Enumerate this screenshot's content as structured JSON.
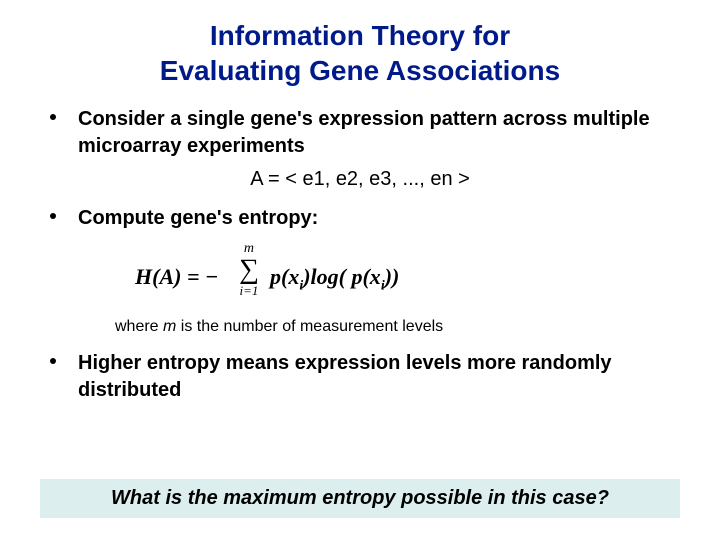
{
  "title": {
    "line1": "Information Theory for",
    "line2": "Evaluating Gene Associations",
    "color": "#001a8a",
    "fontsize": 28
  },
  "bullets": [
    {
      "text": "Consider a single gene's expression pattern across multiple microarray experiments"
    },
    {
      "text": "Compute gene's entropy:"
    },
    {
      "text": "Higher entropy means expression levels more randomly distributed"
    }
  ],
  "vector_formula": "A = < e1, e2, e3, ..., en >",
  "entropy": {
    "lhs": "H(A) = −",
    "sum_top": "m",
    "sigma": "∑",
    "sum_bottom": "i=1",
    "p1": "p(x",
    "sub_i": "i",
    "mid": ")log( p(x",
    "close": "))"
  },
  "where_prefix": "where ",
  "where_m": "m",
  "where_rest": " is the number of measurement levels",
  "question": "What is the maximum entropy possible in this case?",
  "question_bg": "#ddeeee",
  "background_color": "#ffffff"
}
